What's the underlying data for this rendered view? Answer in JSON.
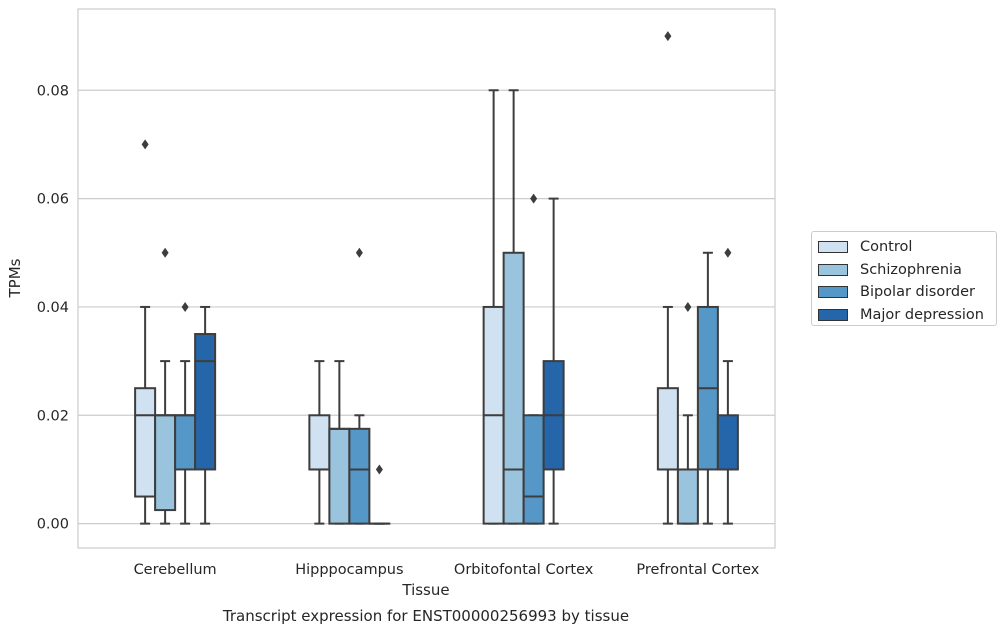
{
  "chart_data": {
    "type": "box",
    "xlabel": "Tissue",
    "ylabel": "TPMs",
    "ylim": [
      -0.0045,
      0.095
    ],
    "yticks": [
      "0.00",
      "0.02",
      "0.04",
      "0.06",
      "0.08"
    ],
    "ytick_values": [
      0.0,
      0.02,
      0.04,
      0.06,
      0.08
    ],
    "grid": "horizontal",
    "legend_position": "right",
    "categories": [
      "Cerebellum",
      "Hipppocampus",
      "Orbitofontal Cortex",
      "Prefrontal Cortex"
    ],
    "series": [
      {
        "name": "Control",
        "color": "#d0e1f2",
        "boxes": [
          {
            "min": 0.0,
            "q1": 0.005,
            "median": 0.02,
            "q3": 0.025,
            "max": 0.04,
            "outliers": [
              0.07
            ]
          },
          {
            "min": 0.0,
            "q1": 0.01,
            "median": 0.01,
            "q3": 0.02,
            "max": 0.03,
            "outliers": []
          },
          {
            "min": 0.0,
            "q1": 0.0,
            "median": 0.02,
            "q3": 0.04,
            "max": 0.08,
            "outliers": []
          },
          {
            "min": 0.0,
            "q1": 0.01,
            "median": 0.01,
            "q3": 0.025,
            "max": 0.04,
            "outliers": [
              0.09
            ]
          }
        ]
      },
      {
        "name": "Schizophrenia",
        "color": "#9ac3dd",
        "boxes": [
          {
            "min": 0.0,
            "q1": 0.0025,
            "median": 0.02,
            "q3": 0.02,
            "max": 0.03,
            "outliers": [
              0.05
            ]
          },
          {
            "min": 0.0,
            "q1": 0.0,
            "median": 0.0175,
            "q3": 0.0175,
            "max": 0.03,
            "outliers": []
          },
          {
            "min": 0.0,
            "q1": 0.0,
            "median": 0.01,
            "q3": 0.05,
            "max": 0.08,
            "outliers": []
          },
          {
            "min": 0.0,
            "q1": 0.0,
            "median": 0.01,
            "q3": 0.01,
            "max": 0.02,
            "outliers": [
              0.04
            ]
          }
        ]
      },
      {
        "name": "Bipolar disorder",
        "color": "#5597c7",
        "boxes": [
          {
            "min": 0.0,
            "q1": 0.01,
            "median": 0.02,
            "q3": 0.02,
            "max": 0.03,
            "outliers": [
              0.04
            ]
          },
          {
            "min": 0.0,
            "q1": 0.0,
            "median": 0.01,
            "q3": 0.0175,
            "max": 0.02,
            "outliers": [
              0.05
            ]
          },
          {
            "min": 0.0,
            "q1": 0.0,
            "median": 0.005,
            "q3": 0.02,
            "max": 0.02,
            "outliers": [
              0.06
            ]
          },
          {
            "min": 0.0,
            "q1": 0.01,
            "median": 0.025,
            "q3": 0.04,
            "max": 0.05,
            "outliers": []
          }
        ]
      },
      {
        "name": "Major depression",
        "color": "#2565a9",
        "boxes": [
          {
            "min": 0.0,
            "q1": 0.01,
            "median": 0.03,
            "q3": 0.035,
            "max": 0.04,
            "outliers": []
          },
          {
            "min": 0.0,
            "q1": 0.0,
            "median": 0.0,
            "q3": 0.0,
            "max": 0.0,
            "outliers": [
              0.01
            ]
          },
          {
            "min": 0.0,
            "q1": 0.01,
            "median": 0.02,
            "q3": 0.03,
            "max": 0.06,
            "outliers": []
          },
          {
            "min": 0.0,
            "q1": 0.01,
            "median": 0.01,
            "q3": 0.02,
            "max": 0.03,
            "outliers": [
              0.05
            ]
          }
        ]
      }
    ]
  },
  "caption": "Transcript expression for ENST00000256993 by tissue"
}
